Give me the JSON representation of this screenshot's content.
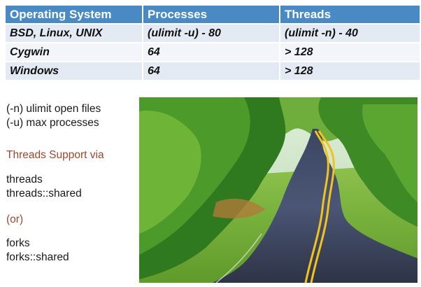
{
  "table": {
    "headers": [
      "Operating System",
      "Processes",
      "Threads"
    ],
    "rows": [
      [
        "BSD, Linux, UNIX",
        "(ulimit -u) - 80",
        "(ulimit -n) - 40"
      ],
      [
        "Cygwin",
        "64",
        "> 128"
      ],
      [
        "Windows",
        "64",
        "> 128"
      ]
    ]
  },
  "notes": {
    "ulimit_n": "(-n) ulimit open files",
    "ulimit_u": "(-u) max processes",
    "threads_heading": "Threads Support via",
    "threads_modules": [
      "threads",
      "threads::shared"
    ],
    "or": "(or)",
    "forks_modules": [
      "forks",
      "forks::shared"
    ]
  },
  "colors": {
    "header_bg": "#4a8ac4",
    "accent_text": "#a0462e"
  },
  "photo": {
    "subject": "winding road through green forest",
    "icon": "road-photo"
  }
}
